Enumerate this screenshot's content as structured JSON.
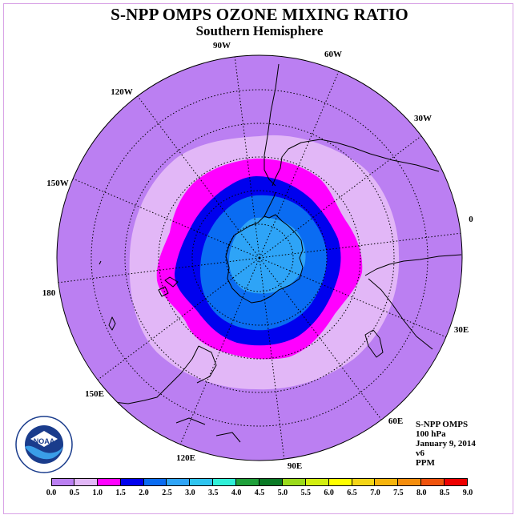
{
  "title": "S-NPP OMPS OZONE MIXING RATIO",
  "subtitle": "Southern Hemisphere",
  "longitude_labels": [
    "90W",
    "60W",
    "30W",
    "0",
    "30E",
    "60E",
    "90E",
    "120E",
    "150E",
    "180",
    "150W",
    "120W"
  ],
  "info": {
    "instrument": "S-NPP OMPS",
    "level": "100 hPa",
    "date": "January 9, 2014",
    "version": "v6",
    "units": "PPM"
  },
  "logo_text": "NOAA",
  "colorbar": {
    "ticks": [
      "0.0",
      "0.5",
      "1.0",
      "1.5",
      "2.0",
      "2.5",
      "3.0",
      "3.5",
      "4.0",
      "4.5",
      "5.0",
      "5.5",
      "6.0",
      "6.5",
      "7.0",
      "7.5",
      "8.0",
      "8.5",
      "9.0"
    ],
    "colors": [
      "#bb7ff2",
      "#e2b7f7",
      "#ff00ff",
      "#0000ee",
      "#0a6cf2",
      "#2ea4f7",
      "#2ec4ef",
      "#2ff0d8",
      "#1fa03a",
      "#0a7a25",
      "#9ada1a",
      "#d2ee0f",
      "#ffff00",
      "#f4d516",
      "#f6b40c",
      "#f58d0c",
      "#f0530c",
      "#ee0000",
      "#8a5a3e"
    ]
  },
  "map_colors": {
    "background_lavender": "#bb7ff2",
    "ring_light_pink": "#e2b7f7",
    "ring_magenta": "#ff00ff",
    "ring_blue": "#0000ee",
    "core_mid_blue": "#0a6cf2",
    "core_light_blue": "#2ea4f7"
  }
}
